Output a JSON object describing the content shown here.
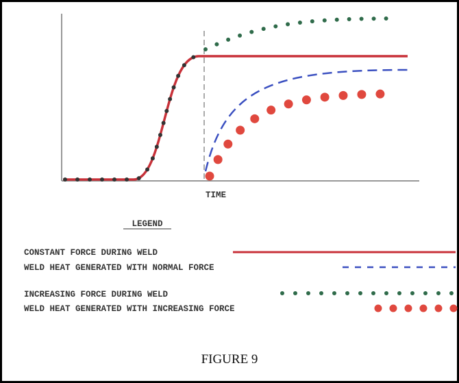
{
  "axis_label": "TIME",
  "legend": {
    "title": "LEGEND",
    "entries": [
      "CONSTANT FORCE DURING WELD",
      "WELD HEAT GENERATED WITH NORMAL FORCE",
      "INCREASING FORCE DURING WELD",
      "WELD HEAT GENERATED WITH INCREASING FORCE"
    ]
  },
  "caption": "FIGURE 9"
}
